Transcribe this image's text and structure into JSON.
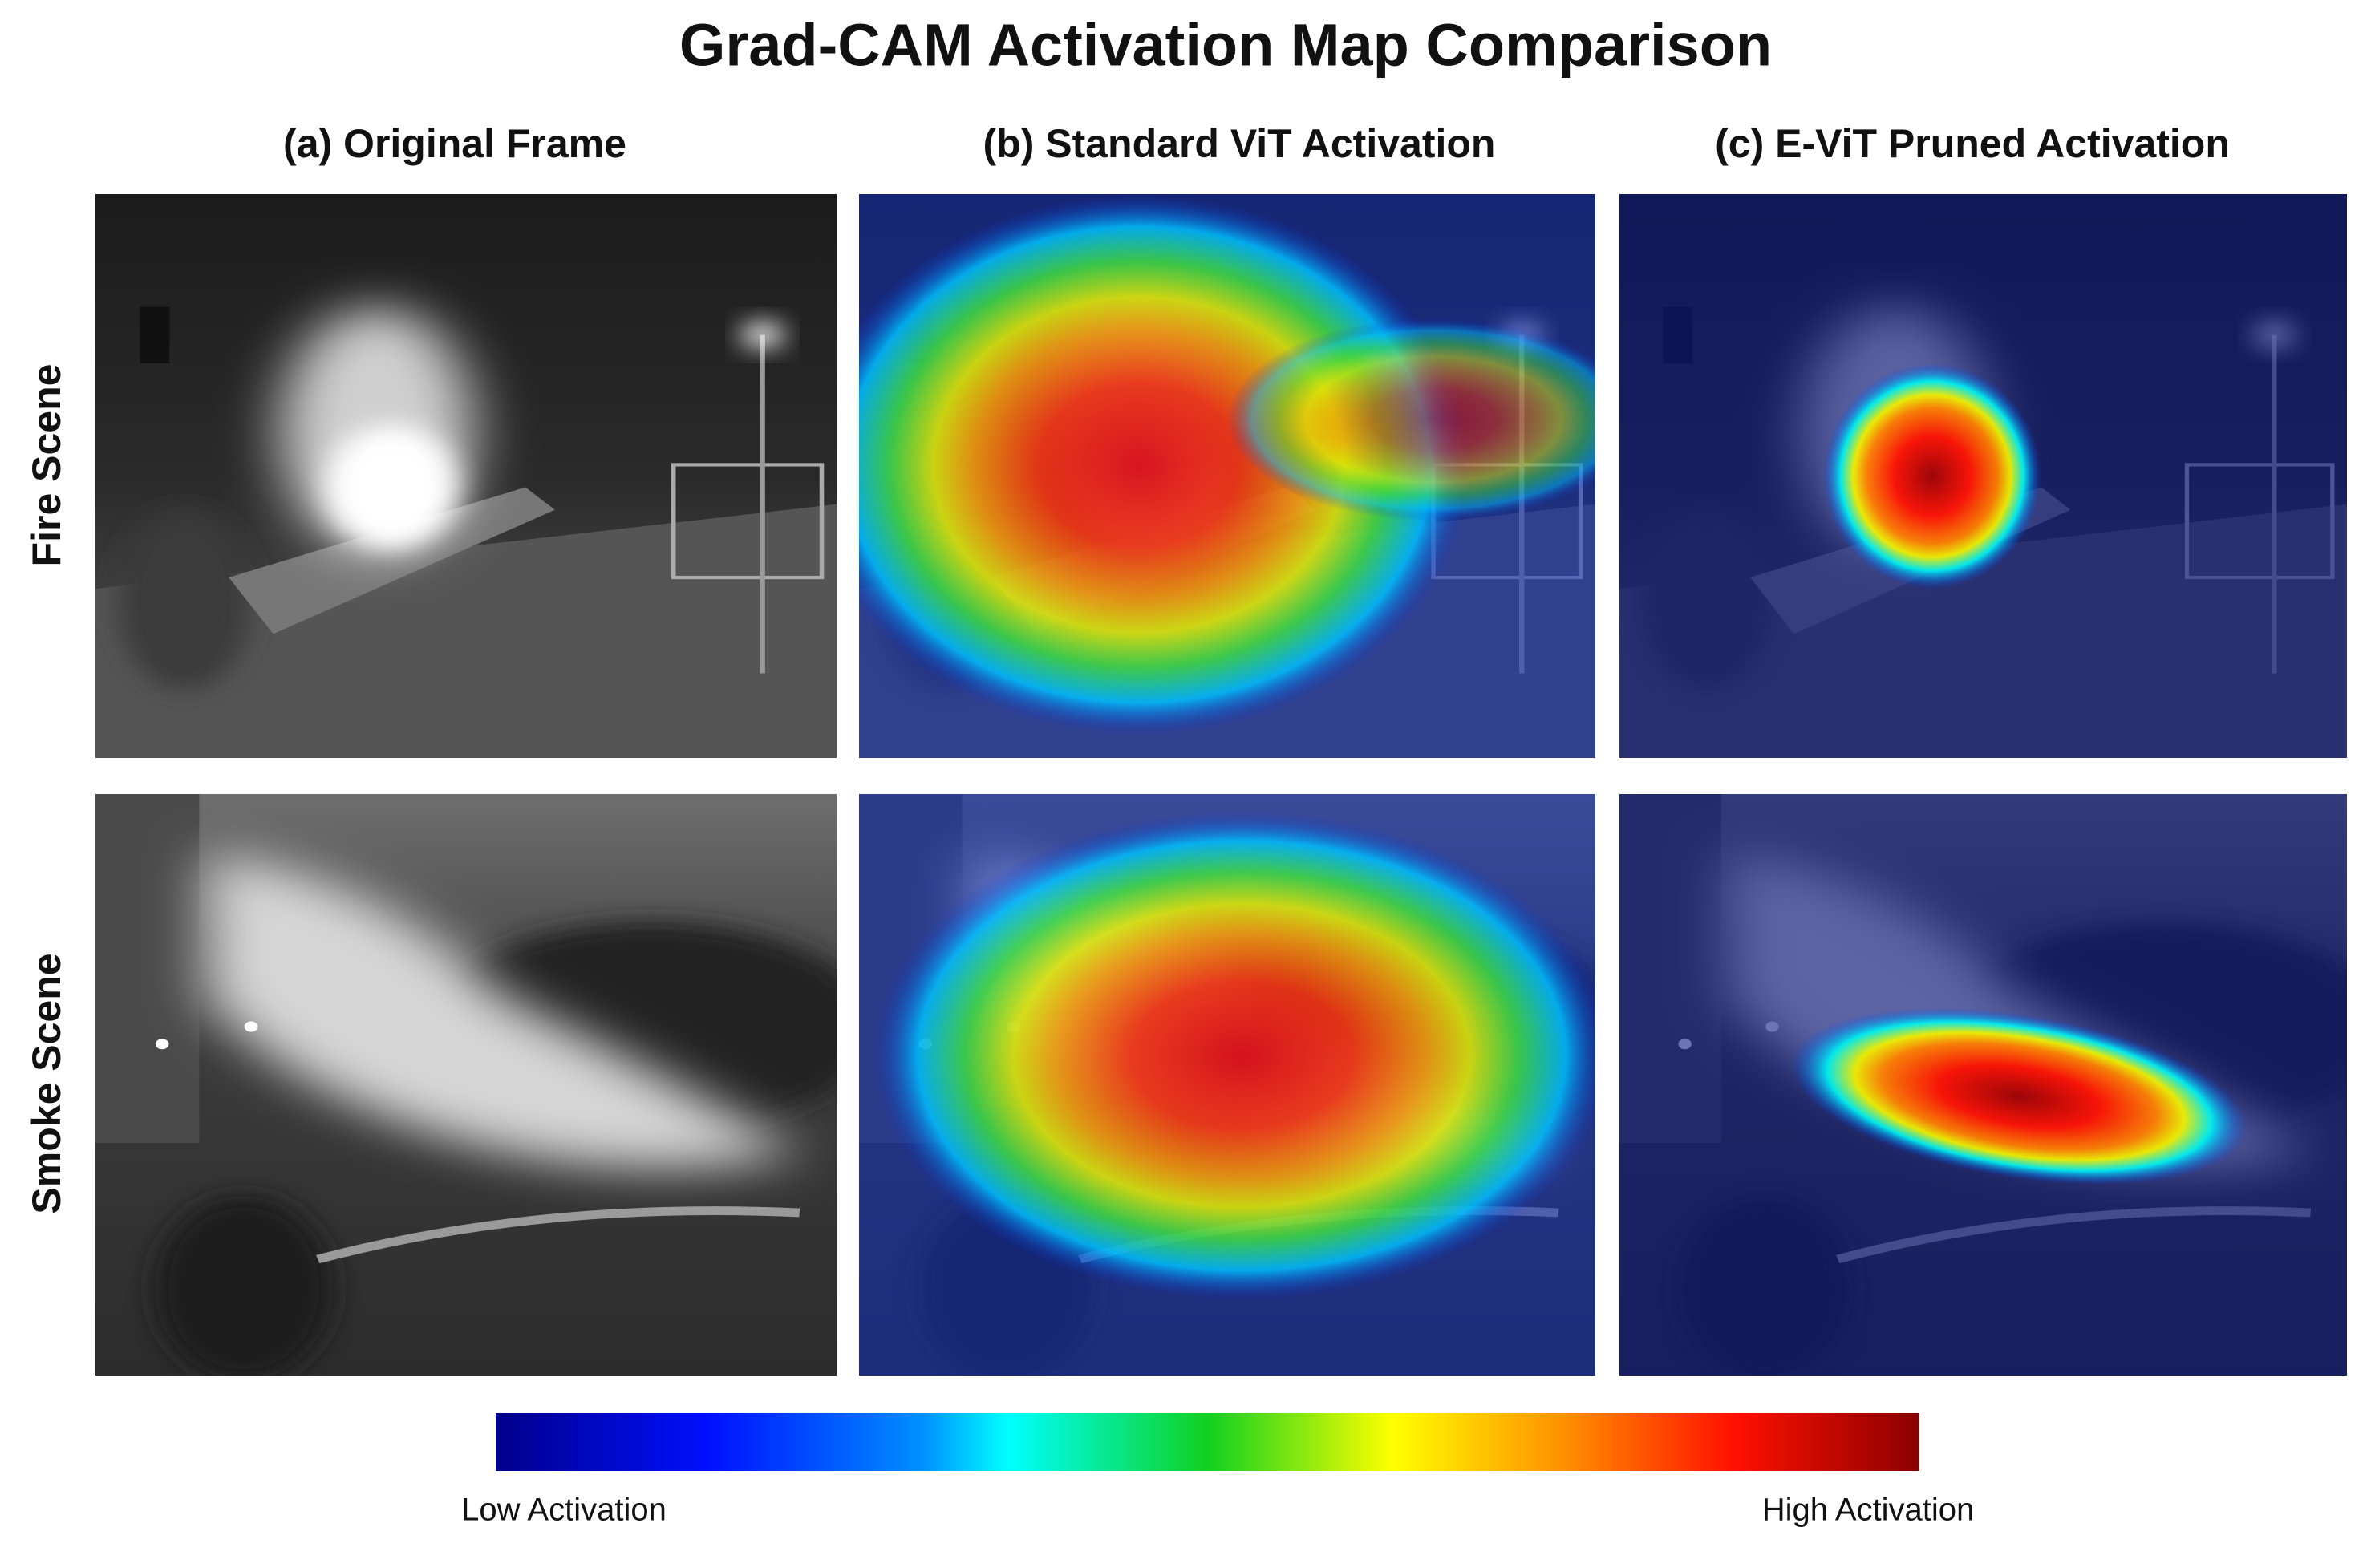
{
  "title": "Grad-CAM Activation Map Comparison",
  "columns": [
    "(a) Original Frame",
    "(b) Standard ViT Activation",
    "(c) E-ViT Pruned Activation"
  ],
  "rows": [
    "Fire Scene",
    "Smoke Scene"
  ],
  "colorbar": {
    "low_label": "Low Activation",
    "high_label": "High Activation"
  }
}
